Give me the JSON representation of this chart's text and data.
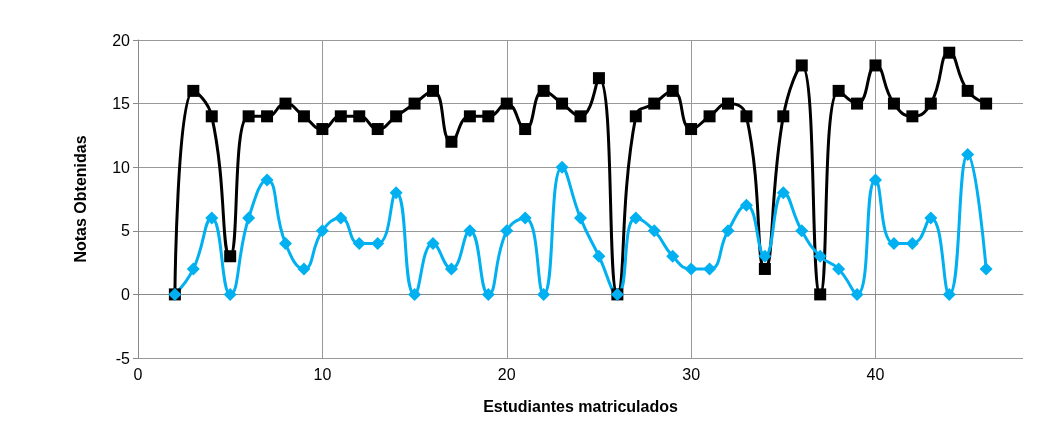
{
  "chart_data": {
    "type": "line",
    "xlabel": "Estudiantes matriculados",
    "ylabel": "Notas Obtenidas",
    "x": [
      2,
      3,
      4,
      5,
      6,
      7,
      8,
      9,
      10,
      11,
      12,
      13,
      14,
      15,
      16,
      17,
      18,
      19,
      20,
      21,
      22,
      23,
      24,
      25,
      26,
      27,
      28,
      29,
      30,
      31,
      32,
      33,
      34,
      35,
      36,
      37,
      38,
      39,
      40,
      41,
      42,
      43,
      44,
      45,
      46
    ],
    "series": [
      {
        "color": "#000000",
        "marker": "square",
        "values": [
          0,
          16,
          14,
          3,
          14,
          14,
          15,
          14,
          13,
          14,
          14,
          13,
          14,
          15,
          16,
          12,
          14,
          14,
          15,
          13,
          16,
          15,
          14,
          17,
          0,
          14,
          15,
          16,
          13,
          14,
          15,
          14,
          2,
          14,
          18,
          0,
          16,
          15,
          18,
          15,
          14,
          15,
          19,
          16,
          15
        ]
      },
      {
        "color": "#00b0f0",
        "marker": "diamond",
        "values": [
          0,
          2,
          6,
          0,
          6,
          9,
          4,
          2,
          5,
          6,
          4,
          4,
          8,
          0,
          4,
          2,
          5,
          0,
          5,
          6,
          0,
          10,
          6,
          3,
          0,
          6,
          5,
          3,
          2,
          2,
          5,
          7,
          3,
          8,
          5,
          3,
          2,
          0,
          9,
          4,
          4,
          6,
          0,
          11,
          2
        ]
      }
    ],
    "xlim": [
      0,
      48
    ],
    "xticks": [
      0,
      10,
      20,
      30,
      40
    ],
    "ylim": [
      -5,
      20
    ],
    "yticks": [
      -5,
      0,
      5,
      10,
      15,
      20
    ],
    "grid": true
  }
}
